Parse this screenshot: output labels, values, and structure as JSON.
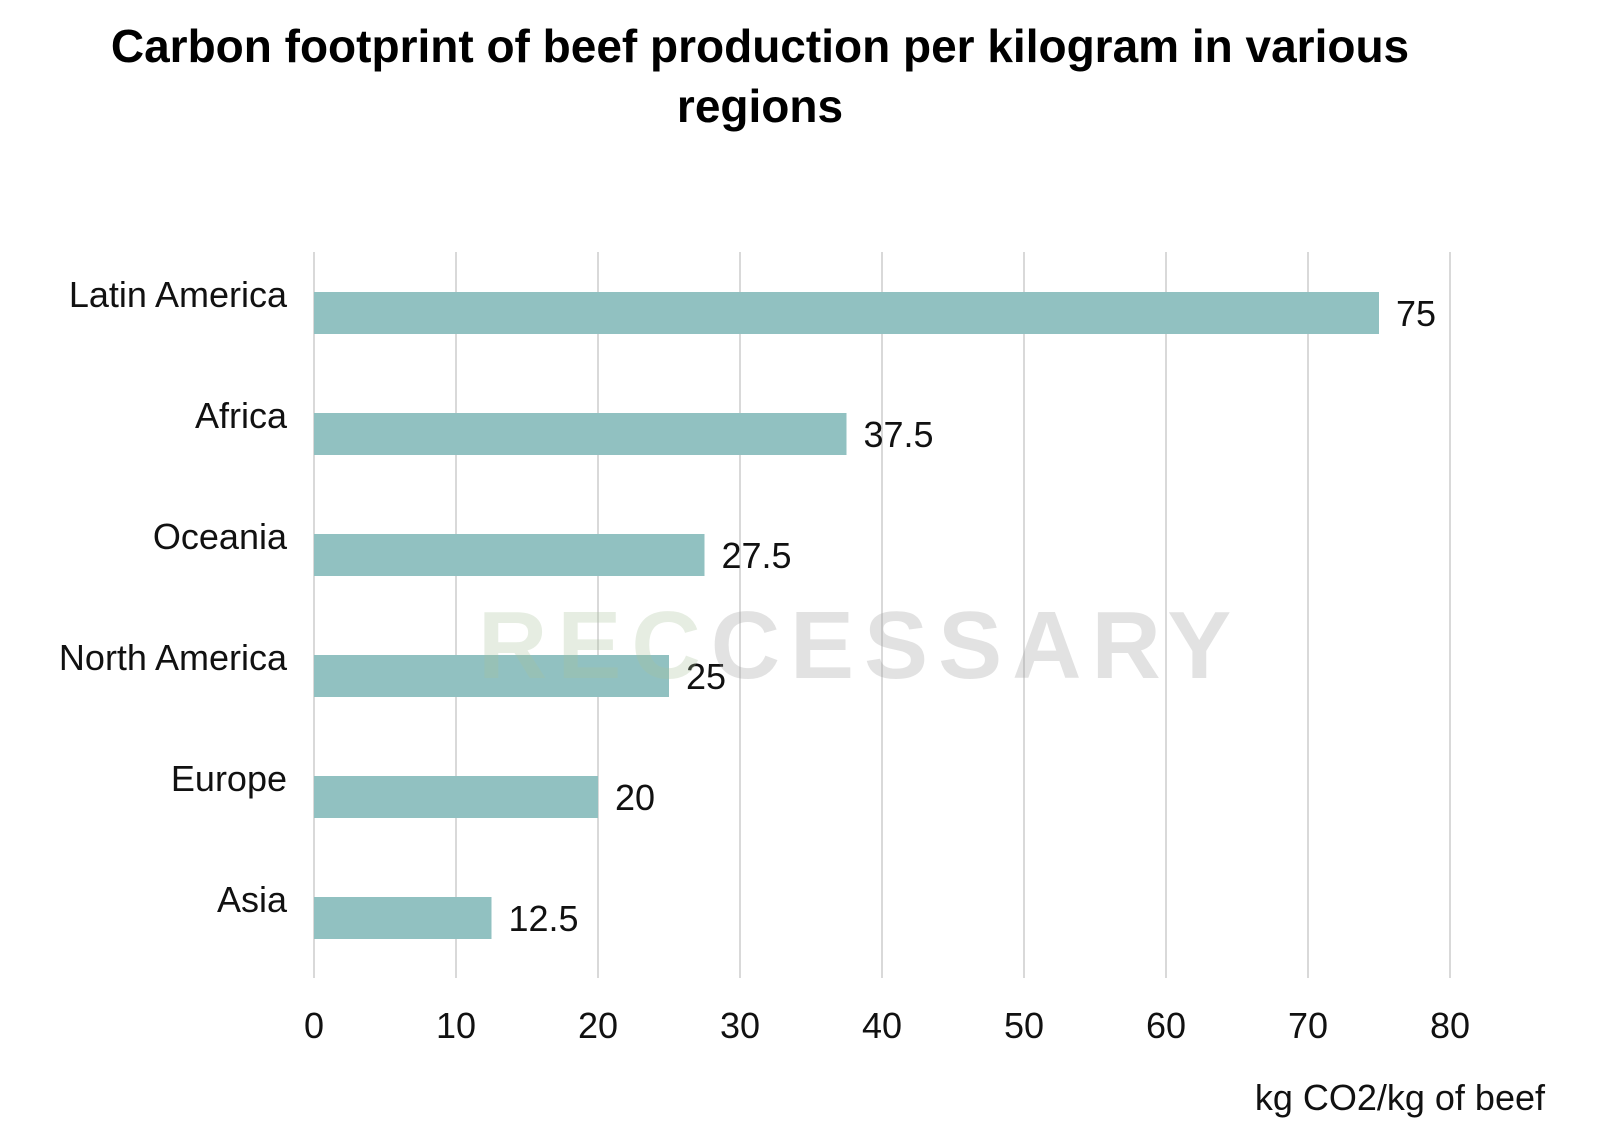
{
  "chart_data": {
    "type": "bar",
    "orientation": "horizontal",
    "title": "Carbon footprint of beef production per kilogram in various regions",
    "xlabel": "kg CO2/kg of beef",
    "ylabel": "",
    "categories": [
      "Latin America",
      "Africa",
      "Oceania",
      "North America",
      "Europe",
      "Asia"
    ],
    "values": [
      75,
      37.5,
      27.5,
      25,
      20,
      12.5
    ],
    "value_labels": [
      "75",
      "37.5",
      "27.5",
      "25",
      "20",
      "12.5"
    ],
    "xlim": [
      0,
      80
    ],
    "x_ticks": [
      0,
      10,
      20,
      30,
      40,
      50,
      60,
      70,
      80
    ],
    "grid": true,
    "legend": "none",
    "bar_color": "#91c1c1"
  },
  "watermark": {
    "text": "RECCESSARY",
    "color_left": "#a9c29a",
    "color_right": "#9a9a9a"
  }
}
